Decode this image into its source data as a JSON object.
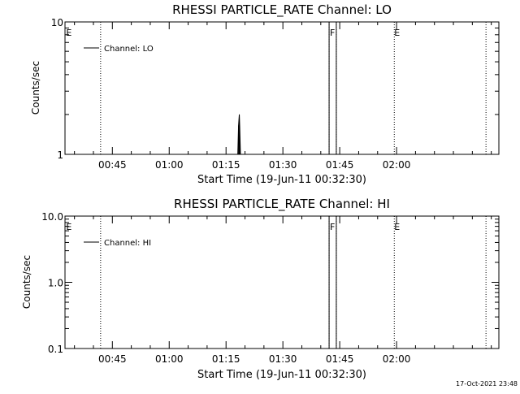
{
  "timestamp": "17-Oct-2021 23:48",
  "chart_data": [
    {
      "type": "line",
      "title": "RHESSI PARTICLE_RATE Channel: LO",
      "xlabel": "Start Time (19-Jun-11 00:32:30)",
      "ylabel": "Counts/sec",
      "yscale": "log",
      "ylim": [
        1,
        10
      ],
      "y_ticks": [
        "1",
        "10"
      ],
      "xlim_minutes_after_start": [
        0,
        114.5
      ],
      "x_ticks": [
        {
          "label": "00:45",
          "minutes": 12.5
        },
        {
          "label": "01:00",
          "minutes": 27.5
        },
        {
          "label": "01:15",
          "minutes": 42.5
        },
        {
          "label": "01:30",
          "minutes": 57.5
        },
        {
          "label": "01:45",
          "minutes": 72.5
        },
        {
          "label": "02:00",
          "minutes": 87.5
        }
      ],
      "legend": {
        "label": "Channel: LO",
        "position": "top-left"
      },
      "series": [
        {
          "name": "Channel: LO",
          "color": "#000000",
          "x": [
            45.6,
            45.8,
            46.0,
            46.1,
            46.3
          ],
          "y": [
            1,
            1.65,
            2.0,
            1.65,
            1
          ],
          "pulses": [
            {
              "x0": 69.7,
              "x1": 71.6,
              "y": 10
            }
          ]
        }
      ],
      "event_lines": [
        {
          "x": 9.4,
          "flag": "E",
          "flag_at": 0.3
        },
        {
          "x": 69.7,
          "flag": "F",
          "flag_at": 69.9
        },
        {
          "x": 71.6,
          "flag": ""
        },
        {
          "x": 86.9,
          "flag": "E",
          "flag_at": 86.9
        },
        {
          "x": 111.1,
          "flag": ""
        }
      ]
    },
    {
      "type": "line",
      "title": "RHESSI PARTICLE_RATE Channel: HI",
      "xlabel": "Start Time (19-Jun-11 00:32:30)",
      "ylabel": "Counts/sec",
      "yscale": "log",
      "ylim": [
        0.1,
        10
      ],
      "y_ticks": [
        "0.1",
        "1.0",
        "10.0"
      ],
      "xlim_minutes_after_start": [
        0,
        114.5
      ],
      "x_ticks": [
        {
          "label": "00:45",
          "minutes": 12.5
        },
        {
          "label": "01:00",
          "minutes": 27.5
        },
        {
          "label": "01:15",
          "minutes": 42.5
        },
        {
          "label": "01:30",
          "minutes": 57.5
        },
        {
          "label": "01:45",
          "minutes": 72.5
        },
        {
          "label": "02:00",
          "minutes": 87.5
        }
      ],
      "legend": {
        "label": "Channel: HI",
        "position": "top-left"
      },
      "series": [
        {
          "name": "Channel: HI",
          "color": "#000000",
          "x": [],
          "y": [],
          "pulses": [
            {
              "x0": 69.7,
              "x1": 71.6,
              "y": 10
            }
          ]
        }
      ],
      "event_lines": [
        {
          "x": 9.4,
          "flag": "E",
          "flag_at": 0.3
        },
        {
          "x": 69.7,
          "flag": "F",
          "flag_at": 69.9
        },
        {
          "x": 71.6,
          "flag": ""
        },
        {
          "x": 86.9,
          "flag": "E",
          "flag_at": 86.9
        },
        {
          "x": 111.1,
          "flag": ""
        }
      ]
    }
  ]
}
